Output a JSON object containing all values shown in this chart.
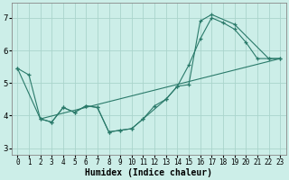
{
  "xlabel": "Humidex (Indice chaleur)",
  "bg_color": "#cceee8",
  "grid_color": "#aad4cc",
  "line_color": "#2a7a6a",
  "xlim": [
    -0.5,
    23.5
  ],
  "ylim": [
    2.8,
    7.45
  ],
  "xticks": [
    0,
    1,
    2,
    3,
    4,
    5,
    6,
    7,
    8,
    9,
    10,
    11,
    12,
    13,
    14,
    15,
    16,
    17,
    18,
    19,
    20,
    21,
    22,
    23
  ],
  "yticks": [
    3,
    4,
    5,
    6,
    7
  ],
  "series1_x": [
    0,
    1,
    2,
    3,
    4,
    5,
    6,
    7,
    8,
    9,
    10,
    11,
    12,
    13,
    14,
    15,
    16,
    17,
    18,
    19,
    20,
    21,
    22,
    23
  ],
  "series1_y": [
    5.45,
    5.25,
    3.9,
    3.8,
    4.25,
    4.1,
    4.3,
    4.25,
    3.5,
    3.55,
    3.6,
    3.9,
    4.3,
    4.5,
    4.9,
    5.55,
    6.35,
    7.0,
    6.85,
    6.65,
    6.25,
    5.75,
    5.75,
    5.75
  ],
  "series2_x": [
    0,
    2,
    3,
    4,
    5,
    6,
    7,
    8,
    9,
    10,
    11,
    13,
    14,
    15,
    16,
    17,
    19,
    22,
    23
  ],
  "series2_y": [
    5.45,
    3.9,
    3.8,
    4.25,
    4.1,
    4.3,
    4.25,
    3.5,
    3.55,
    3.6,
    3.9,
    4.5,
    4.9,
    4.95,
    6.9,
    7.1,
    6.8,
    5.75,
    5.75
  ],
  "series3_x": [
    2,
    23
  ],
  "series3_y": [
    3.9,
    5.75
  ]
}
